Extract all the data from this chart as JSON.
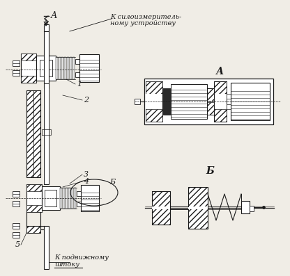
{
  "bg_color": "#f0ede6",
  "line_color": "#1a1a1a",
  "text_top_line1": "К силоизмеритель-",
  "text_top_line2": "ному устройству",
  "text_bottom_line1": "К подвижному",
  "text_bottom_line2": "штоку",
  "label_A_arrow": "А",
  "label_1": "1",
  "label_2": "2",
  "label_3": "3",
  "label_4": "4",
  "label_5": "5",
  "label_B_ellipse": "Б",
  "title_A": "А",
  "title_B": "Б"
}
